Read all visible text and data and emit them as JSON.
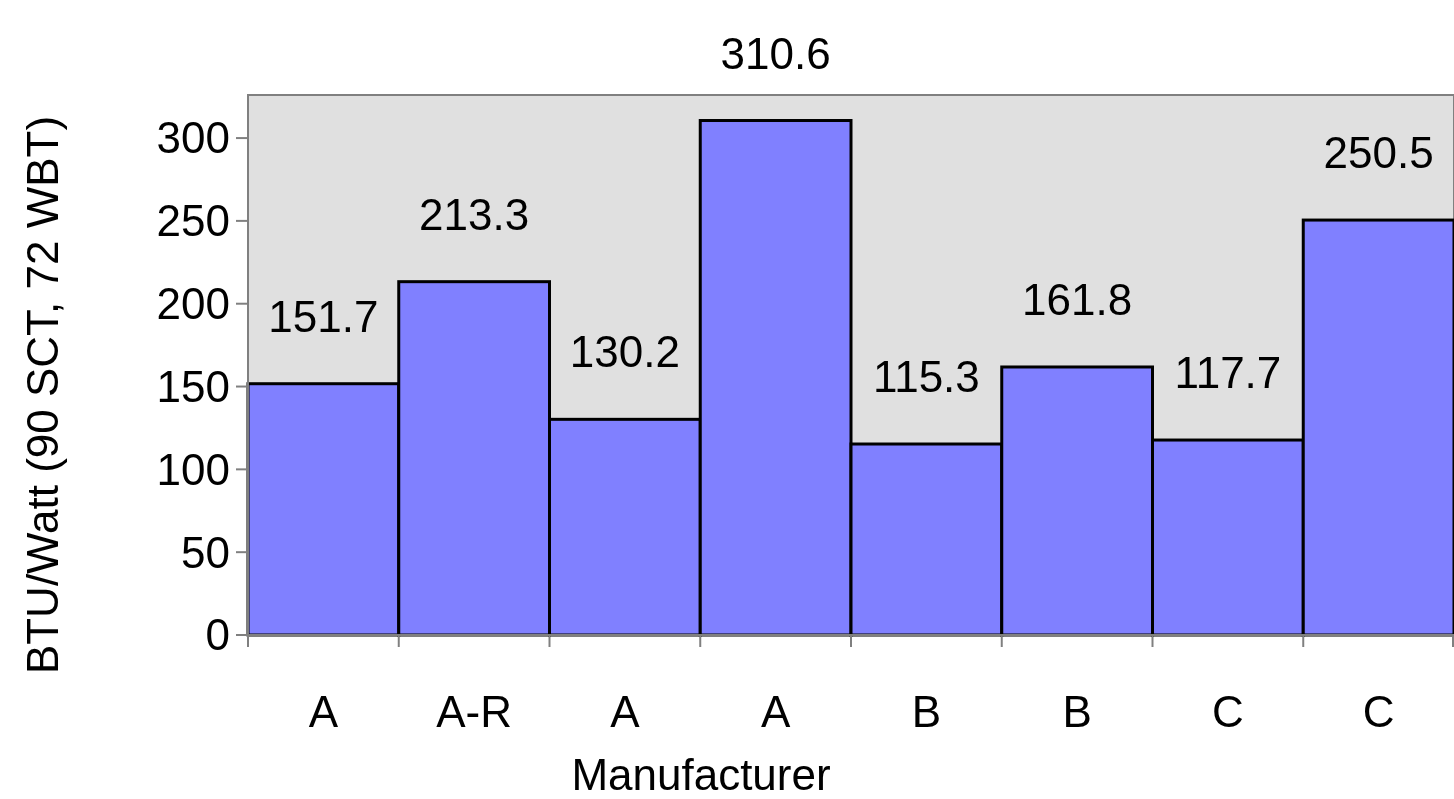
{
  "chart_data": {
    "type": "bar",
    "xlabel": "Manufacturer",
    "ylabel": "BTU/Watt (90 SCT, 72 WBT)",
    "categories": [
      "A",
      "A-R",
      "A",
      "A",
      "B",
      "B",
      "C",
      "C"
    ],
    "values": [
      151.7,
      213.3,
      130.2,
      310.6,
      115.3,
      161.8,
      117.7,
      250.5
    ],
    "color": "#8080ff",
    "ylim": [
      0,
      326
    ],
    "yticks": [
      0,
      50,
      100,
      150,
      200,
      250,
      300
    ],
    "data_labels": true,
    "grid": false
  }
}
